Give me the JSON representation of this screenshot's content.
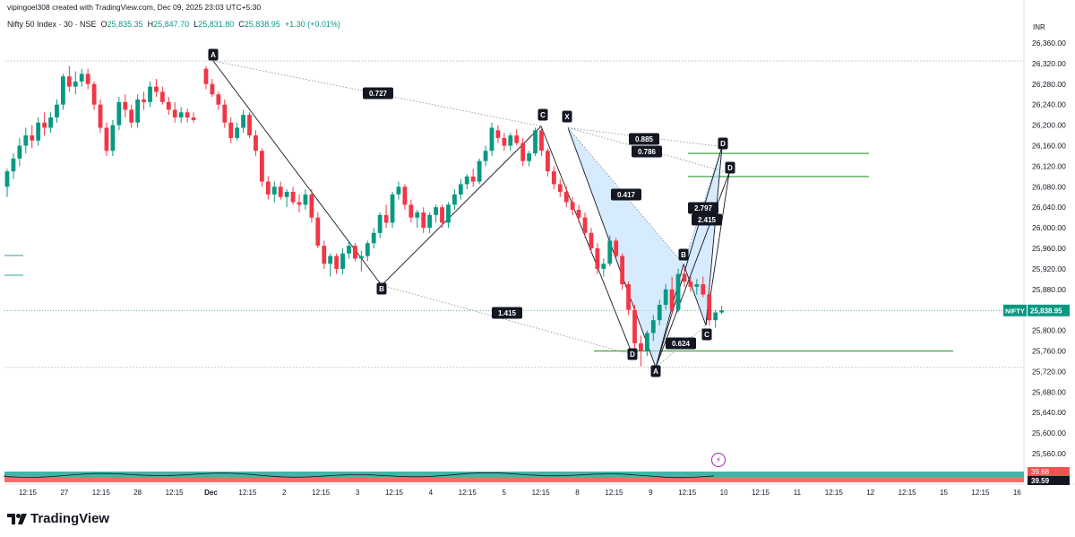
{
  "header": {
    "credit": "vipingoel308 created with TradingView.com, Dec 09, 2025 23:03 UTC+5:30",
    "symbol_title": "Nifty 50 Index · 30 · NSE",
    "ohlc": {
      "O_label": "O",
      "O": "25,835.35",
      "H_label": "H",
      "H": "25,847.70",
      "L_label": "L",
      "L": "25,831.80",
      "C_label": "C",
      "C": "25,838.95",
      "change": "+1.30 (+0.01%)"
    }
  },
  "price_scale": {
    "currency": "INR",
    "ticks": [
      "26,360.00",
      "26,320.00",
      "26,280.00",
      "26,240.00",
      "26,200.00",
      "26,160.00",
      "26,120.00",
      "26,080.00",
      "26,040.00",
      "26,000.00",
      "25,960.00",
      "25,920.00",
      "25,880.00",
      "25,840.00",
      "25,800.00",
      "25,760.00",
      "25,720.00",
      "25,680.00",
      "25,640.00",
      "25,600.00",
      "25,560.00"
    ],
    "last_price_symbol": "NIFTY",
    "last_price": "25,838.95"
  },
  "time_scale": {
    "ticks": [
      "12:15",
      "27",
      "12:15",
      "28",
      "12:15",
      "Dec",
      "12:15",
      "2",
      "12:15",
      "3",
      "12:15",
      "4",
      "12:15",
      "5",
      "12:15",
      "8",
      "12:15",
      "9",
      "12:15",
      "10",
      "12:15",
      "11",
      "12:15",
      "12",
      "12:15",
      "15",
      "12:15",
      "16"
    ]
  },
  "indicator_pane": {
    "values": [
      "39.68",
      "39.59"
    ]
  },
  "brand": {
    "name": "TradingView"
  },
  "colors": {
    "up": "#089981",
    "down": "#f23645",
    "pattern_fill": "#bbdefb",
    "target_line": "#43a047",
    "label_bg": "#131722",
    "indicator_band": "#26a69a",
    "indicator_band_red": "#ef5350"
  },
  "chart_data": {
    "type": "candlestick",
    "symbol": "NIFTY",
    "interval": "30",
    "ylim": [
      25520,
      26380
    ],
    "last_price": 25838.95,
    "candles": [
      [
        26080,
        26115,
        26060,
        26110
      ],
      [
        26110,
        26145,
        26095,
        26135
      ],
      [
        26135,
        26175,
        26120,
        26160
      ],
      [
        26160,
        26195,
        26145,
        26180
      ],
      [
        26180,
        26200,
        26155,
        26170
      ],
      [
        26170,
        26215,
        26160,
        26205
      ],
      [
        26205,
        26225,
        26180,
        26195
      ],
      [
        26195,
        26225,
        26185,
        26215
      ],
      [
        26215,
        26250,
        26205,
        26240
      ],
      [
        26240,
        26300,
        26230,
        26295
      ],
      [
        26295,
        26315,
        26265,
        26275
      ],
      [
        26275,
        26305,
        26260,
        26285
      ],
      [
        26285,
        26310,
        26275,
        26300
      ],
      [
        26300,
        26310,
        26270,
        26280
      ],
      [
        26280,
        26285,
        26230,
        26240
      ],
      [
        26240,
        26250,
        26185,
        26195
      ],
      [
        26195,
        26205,
        26140,
        26150
      ],
      [
        26150,
        26210,
        26140,
        26200
      ],
      [
        26200,
        26255,
        26190,
        26245
      ],
      [
        26245,
        26260,
        26215,
        26230
      ],
      [
        26230,
        26240,
        26195,
        26205
      ],
      [
        26205,
        26260,
        26195,
        26250
      ],
      [
        26250,
        26265,
        26230,
        26245
      ],
      [
        26245,
        26285,
        26235,
        26275
      ],
      [
        26275,
        26290,
        26255,
        26265
      ],
      [
        26265,
        26275,
        26240,
        26245
      ],
      [
        26245,
        26255,
        26220,
        26230
      ],
      [
        26230,
        26245,
        26205,
        26215
      ],
      [
        26215,
        26235,
        26205,
        26225
      ],
      [
        26225,
        26232,
        26205,
        26215
      ],
      [
        26215,
        26225,
        26205,
        26210
      ],
      [
        26310,
        26315,
        26270,
        26280
      ],
      [
        26280,
        26290,
        26255,
        26260
      ],
      [
        26260,
        26265,
        26230,
        26240
      ],
      [
        26240,
        26250,
        26195,
        26205
      ],
      [
        26205,
        26215,
        26165,
        26175
      ],
      [
        26175,
        26205,
        26170,
        26195
      ],
      [
        26195,
        26230,
        26185,
        26220
      ],
      [
        26220,
        26225,
        26175,
        26180
      ],
      [
        26180,
        26190,
        26140,
        26150
      ],
      [
        26150,
        26155,
        26080,
        26090
      ],
      [
        26090,
        26100,
        26055,
        26065
      ],
      [
        26065,
        26090,
        26050,
        26080
      ],
      [
        26080,
        26090,
        26055,
        26060
      ],
      [
        26060,
        26075,
        26040,
        26070
      ],
      [
        26070,
        26080,
        26045,
        26050
      ],
      [
        26050,
        26065,
        26030,
        26045
      ],
      [
        26045,
        26075,
        26035,
        26065
      ],
      [
        26065,
        26075,
        26010,
        26020
      ],
      [
        26020,
        26030,
        25960,
        25965
      ],
      [
        25965,
        25975,
        25920,
        25930
      ],
      [
        25930,
        25950,
        25905,
        25945
      ],
      [
        25945,
        25950,
        25910,
        25920
      ],
      [
        25920,
        25960,
        25910,
        25950
      ],
      [
        25950,
        25975,
        25940,
        25965
      ],
      [
        25965,
        25970,
        25935,
        25940
      ],
      [
        25940,
        25955,
        25915,
        25945
      ],
      [
        25945,
        25975,
        25935,
        25970
      ],
      [
        25970,
        26000,
        25960,
        25990
      ],
      [
        25990,
        26030,
        25980,
        26025
      ],
      [
        26025,
        26045,
        26000,
        26010
      ],
      [
        26010,
        26070,
        26000,
        26065
      ],
      [
        26065,
        26090,
        26055,
        26080
      ],
      [
        26080,
        26085,
        26035,
        26045
      ],
      [
        26045,
        26055,
        26010,
        26020
      ],
      [
        26020,
        26035,
        26000,
        26030
      ],
      [
        26030,
        26040,
        25990,
        26000
      ],
      [
        26000,
        26030,
        25990,
        26025
      ],
      [
        26025,
        26045,
        26010,
        26040
      ],
      [
        26040,
        26045,
        26000,
        26010
      ],
      [
        26010,
        26050,
        26000,
        26045
      ],
      [
        26045,
        26075,
        26035,
        26065
      ],
      [
        26065,
        26095,
        26055,
        26085
      ],
      [
        26085,
        26105,
        26075,
        26100
      ],
      [
        26100,
        26115,
        26080,
        26090
      ],
      [
        26090,
        26135,
        26085,
        26130
      ],
      [
        26130,
        26160,
        26120,
        26150
      ],
      [
        26150,
        26205,
        26140,
        26195
      ],
      [
        26190,
        26200,
        26165,
        26175
      ],
      [
        26175,
        26185,
        26150,
        26160
      ],
      [
        26160,
        26185,
        26150,
        26180
      ],
      [
        26180,
        26192,
        26160,
        26165
      ],
      [
        26165,
        26175,
        26120,
        26130
      ],
      [
        26130,
        26150,
        26120,
        26145
      ],
      [
        26145,
        26195,
        26140,
        26190
      ],
      [
        26190,
        26195,
        26140,
        26150
      ],
      [
        26150,
        26155,
        26100,
        26110
      ],
      [
        26110,
        26120,
        26075,
        26085
      ],
      [
        26085,
        26095,
        26060,
        26070
      ],
      [
        26070,
        26080,
        26040,
        26050
      ],
      [
        26050,
        26060,
        26025,
        26035
      ],
      [
        26035,
        26045,
        26010,
        26020
      ],
      [
        26020,
        26030,
        25980,
        25990
      ],
      [
        25990,
        26000,
        25950,
        25960
      ],
      [
        25960,
        25970,
        25910,
        25920
      ],
      [
        25920,
        25940,
        25905,
        25930
      ],
      [
        25930,
        25985,
        25925,
        25975
      ],
      [
        25975,
        25980,
        25940,
        25945
      ],
      [
        25945,
        25950,
        25880,
        25890
      ],
      [
        25890,
        25895,
        25830,
        25840
      ],
      [
        25840,
        25850,
        25760,
        25775
      ],
      [
        25775,
        25790,
        25730,
        25760
      ],
      [
        25760,
        25800,
        25750,
        25795
      ],
      [
        25795,
        25830,
        25780,
        25820
      ],
      [
        25820,
        25860,
        25810,
        25850
      ],
      [
        25850,
        25890,
        25840,
        25880
      ],
      [
        25880,
        25905,
        25830,
        25840
      ],
      [
        25840,
        25920,
        25835,
        25910
      ],
      [
        25910,
        25922,
        25885,
        25895
      ],
      [
        25895,
        25905,
        25875,
        25885
      ],
      [
        25885,
        25900,
        25870,
        25890
      ],
      [
        25890,
        25905,
        25865,
        25870
      ],
      [
        25870,
        25880,
        25810,
        25820
      ],
      [
        25820,
        25840,
        25805,
        25835
      ],
      [
        25835,
        25848,
        25832,
        25839
      ]
    ],
    "patterns": [
      {
        "name": "ABCD",
        "points": [
          {
            "label": "A",
            "price": 26325
          },
          {
            "label": "B",
            "price": 25888
          },
          {
            "label": "C",
            "price": 26198
          },
          {
            "label": "D",
            "price": 25753
          }
        ],
        "ratios": [
          "0.727",
          "1.415"
        ]
      },
      {
        "name": "XABCD",
        "points": [
          {
            "label": "X",
            "price": 26195
          },
          {
            "label": "A",
            "price": 25728
          },
          {
            "label": "B",
            "price": 25929
          },
          {
            "label": "C",
            "price": 25810
          },
          {
            "label": "D",
            "price": 26158
          },
          {
            "label": "D",
            "price": 26107
          }
        ],
        "ratios": [
          "0.417",
          "0.885",
          "0.786",
          "2.797",
          "2.415",
          "0.624"
        ]
      }
    ],
    "horizontal_levels": [
      26325,
      25728,
      26145,
      26100,
      25760
    ],
    "indicator": {
      "values": [
        39.68,
        39.59
      ]
    }
  }
}
